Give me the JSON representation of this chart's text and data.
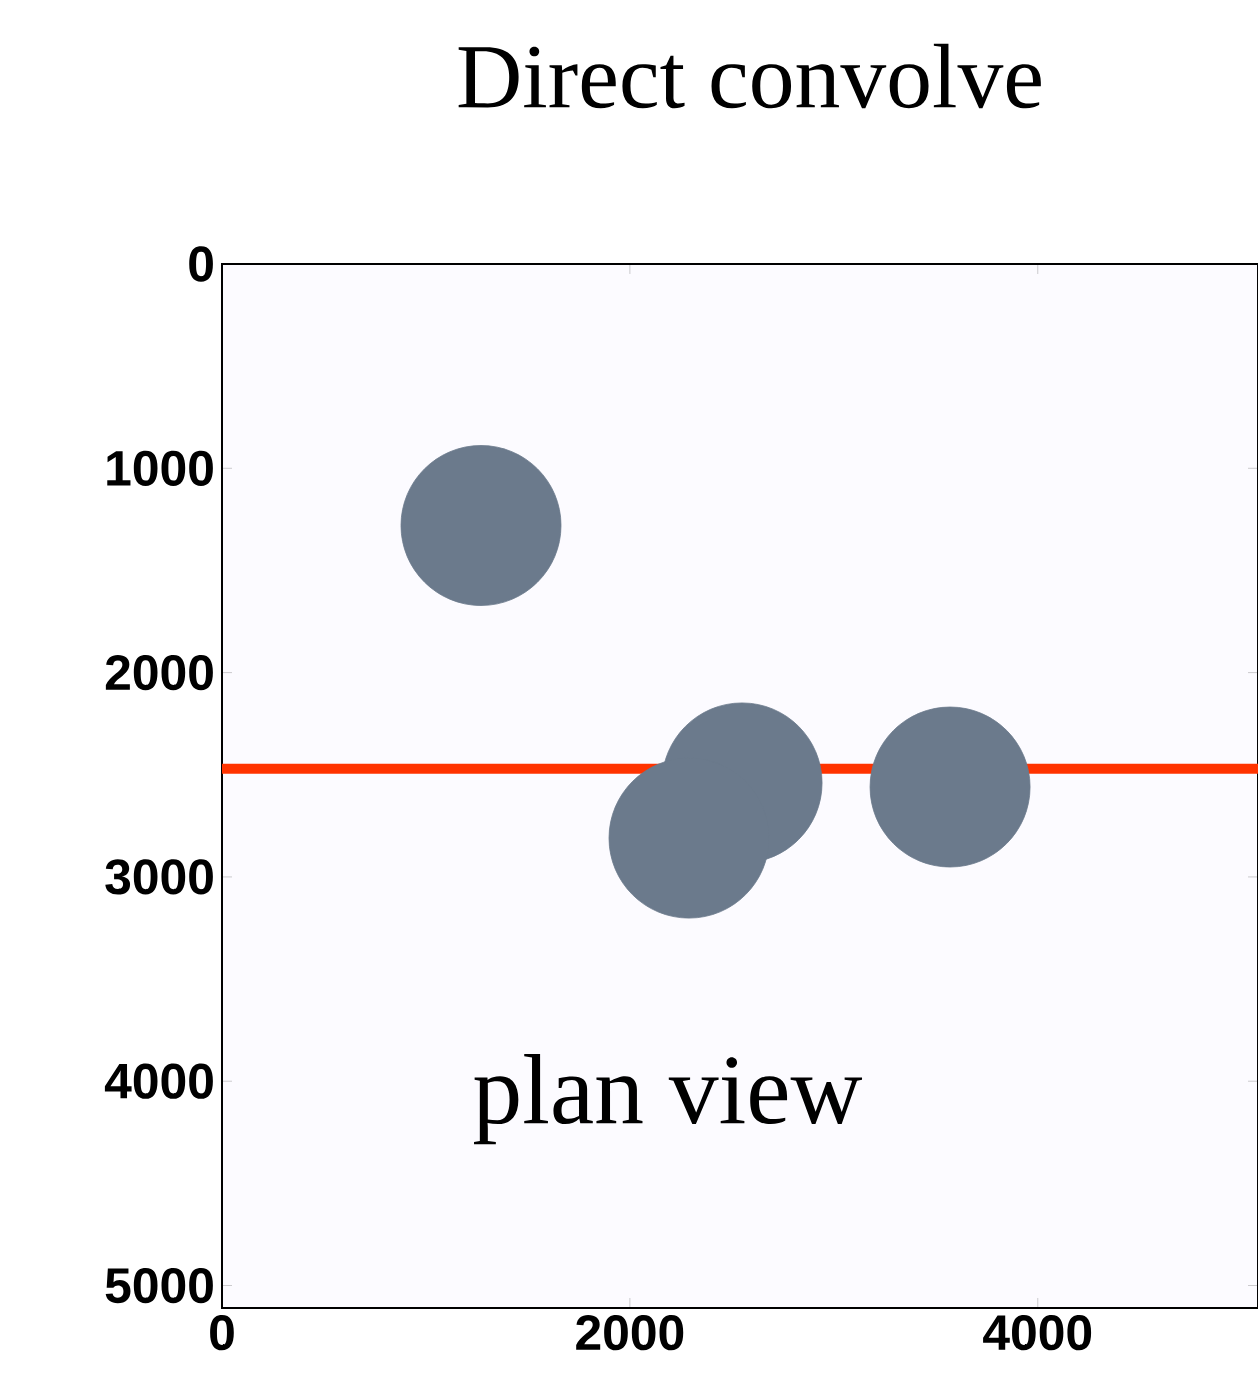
{
  "chart_data": {
    "type": "bubble",
    "title": "Direct convolve",
    "x": [
      1270,
      2550,
      2290,
      3570
    ],
    "values": [
      1280,
      2540,
      2810,
      2560
    ],
    "sizes": [
      1,
      1,
      1,
      1
    ],
    "color": "#6b7a8c",
    "xlim": [
      0,
      5080
    ],
    "ylim": [
      5110,
      0
    ],
    "xticks": [
      0,
      2000,
      4000
    ],
    "yticks": [
      0,
      1000,
      2000,
      3000,
      4000,
      5000
    ],
    "ref_lines": [
      {
        "axis": "y",
        "value": 2471,
        "color": "#ff3300"
      }
    ],
    "annotations": [
      "plan view"
    ]
  }
}
